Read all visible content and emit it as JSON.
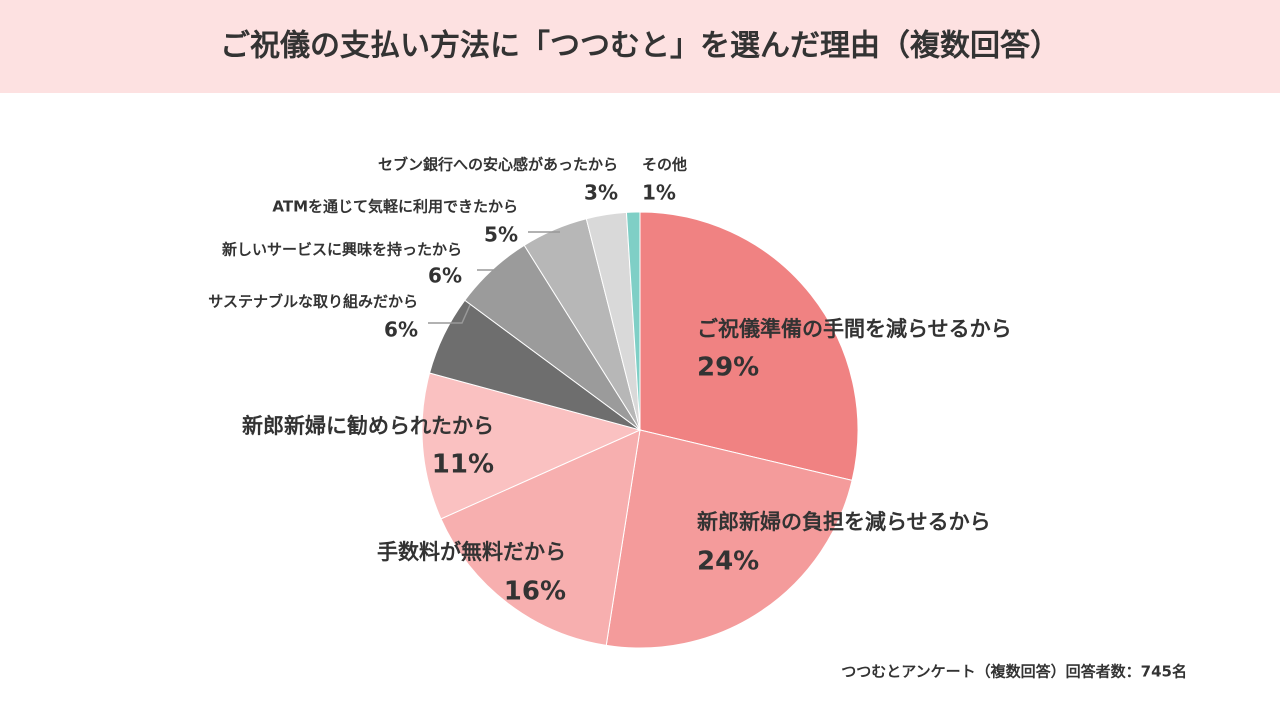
{
  "chart_data": {
    "type": "pie",
    "title": "ご祝儀の支払い方法に「つつむと」を選んだ理由（複数回答）",
    "source": "つつむとアンケート（複数回答）回答者数：745名",
    "categories": [
      "ご祝儀準備の手間を減らせるから",
      "新郎新婦の負担を減らせるから",
      "手数料が無料だから",
      "新郎新婦に勧められたから",
      "サステナブルな取り組みだから",
      "新しいサービスに興味を持ったから",
      "ATMを通じて気軽に利用できたから",
      "セブン銀行への安心感があったから",
      "その他"
    ],
    "values": [
      29,
      24,
      16,
      11,
      6,
      6,
      5,
      3,
      1
    ],
    "value_labels": [
      "29%",
      "24%",
      "16%",
      "11%",
      "6%",
      "6%",
      "5%",
      "3%",
      "1%"
    ],
    "colors": [
      "#f08282",
      "#f49b9b",
      "#f7afaf",
      "#fac1c1",
      "#6e6e6e",
      "#9b9b9b",
      "#b7b7b7",
      "#d9d9d9",
      "#7fcfc6"
    ]
  }
}
